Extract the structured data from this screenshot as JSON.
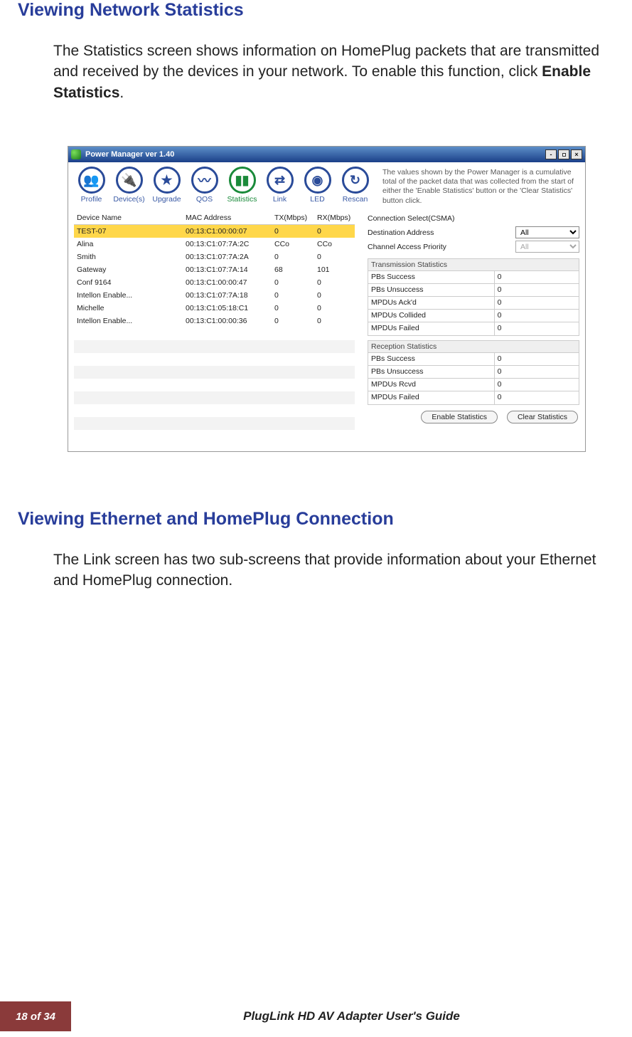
{
  "headings": {
    "h1": "Viewing Network Statistics",
    "h2": "Viewing Ethernet and HomePlug Connection"
  },
  "paragraphs": {
    "p1_before_bold": "The Statistics screen shows information on HomePlug packets that are transmitted and received by the devices in your network. To enable this function, click ",
    "p1_bold": "Enable Statistics",
    "p1_after_bold": ".",
    "p2": "The Link screen has two sub-screens that provide information about your Ethernet and HomePlug connection."
  },
  "app_window": {
    "title": "Power Manager ver 1.40",
    "note": "The values shown by the Power Manager is a cumulative total of the packet data that was collected from the start of either the 'Enable Statistics' button or the 'Clear Statistics' button click.",
    "toolbar": [
      {
        "label": "Profile",
        "glyph": "👥",
        "active": false
      },
      {
        "label": "Device(s)",
        "glyph": "🔌",
        "active": false
      },
      {
        "label": "Upgrade",
        "glyph": "★",
        "active": false
      },
      {
        "label": "QOS",
        "glyph": "〰",
        "active": false
      },
      {
        "label": "Statistics",
        "glyph": "▮▮",
        "active": true
      },
      {
        "label": "Link",
        "glyph": "⇄",
        "active": false
      },
      {
        "label": "LED",
        "glyph": "◉",
        "active": false
      },
      {
        "label": "Rescan",
        "glyph": "↻",
        "active": false
      }
    ],
    "device_table": {
      "columns": [
        "Device Name",
        "MAC Address",
        "TX(Mbps)",
        "RX(Mbps)"
      ],
      "rows": [
        {
          "name": "TEST-07",
          "mac": "00:13:C1:00:00:07",
          "tx": "0",
          "rx": "0",
          "selected": true
        },
        {
          "name": "Alina",
          "mac": "00:13:C1:07:7A:2C",
          "tx": "CCo",
          "rx": "CCo"
        },
        {
          "name": "Smith",
          "mac": "00:13:C1:07:7A:2A",
          "tx": "0",
          "rx": "0"
        },
        {
          "name": "Gateway",
          "mac": "00:13:C1:07:7A:14",
          "tx": "68",
          "rx": "101"
        },
        {
          "name": "Conf 9164",
          "mac": "00:13:C1:00:00:47",
          "tx": "0",
          "rx": "0"
        },
        {
          "name": "Intellon Enable...",
          "mac": "00:13:C1:07:7A:18",
          "tx": "0",
          "rx": "0"
        },
        {
          "name": "Michelle",
          "mac": "00:13:C1:05:18:C1",
          "tx": "0",
          "rx": "0"
        },
        {
          "name": "Intellon Enable...",
          "mac": "00:13:C1:00:00:36",
          "tx": "0",
          "rx": "0"
        }
      ],
      "blank_rows": 9
    },
    "right_panel": {
      "options": [
        {
          "label": "Connection Select(CSMA)",
          "type": "none"
        },
        {
          "label": "Destination Address",
          "type": "select",
          "value": "All",
          "disabled": false
        },
        {
          "label": "Channel Access Priority",
          "type": "select",
          "value": "All",
          "disabled": true
        }
      ],
      "transmission_header": "Transmission Statistics",
      "transmission": [
        {
          "label": "PBs Success",
          "value": "0"
        },
        {
          "label": "PBs Unsuccess",
          "value": "0"
        },
        {
          "label": "MPDUs Ack'd",
          "value": "0"
        },
        {
          "label": "MPDUs Collided",
          "value": "0"
        },
        {
          "label": "MPDUs Failed",
          "value": "0"
        }
      ],
      "reception_header": "Reception Statistics",
      "reception": [
        {
          "label": "PBs Success",
          "value": "0"
        },
        {
          "label": "PBs Unsuccess",
          "value": "0"
        },
        {
          "label": "MPDUs Rcvd",
          "value": "0"
        },
        {
          "label": "MPDUs Failed",
          "value": "0"
        }
      ],
      "buttons": {
        "enable": "Enable Statistics",
        "clear": "Clear Statistics"
      }
    }
  },
  "footer": {
    "page_num": "18 of 34",
    "title": "PlugLink HD AV Adapter User's Guide"
  }
}
